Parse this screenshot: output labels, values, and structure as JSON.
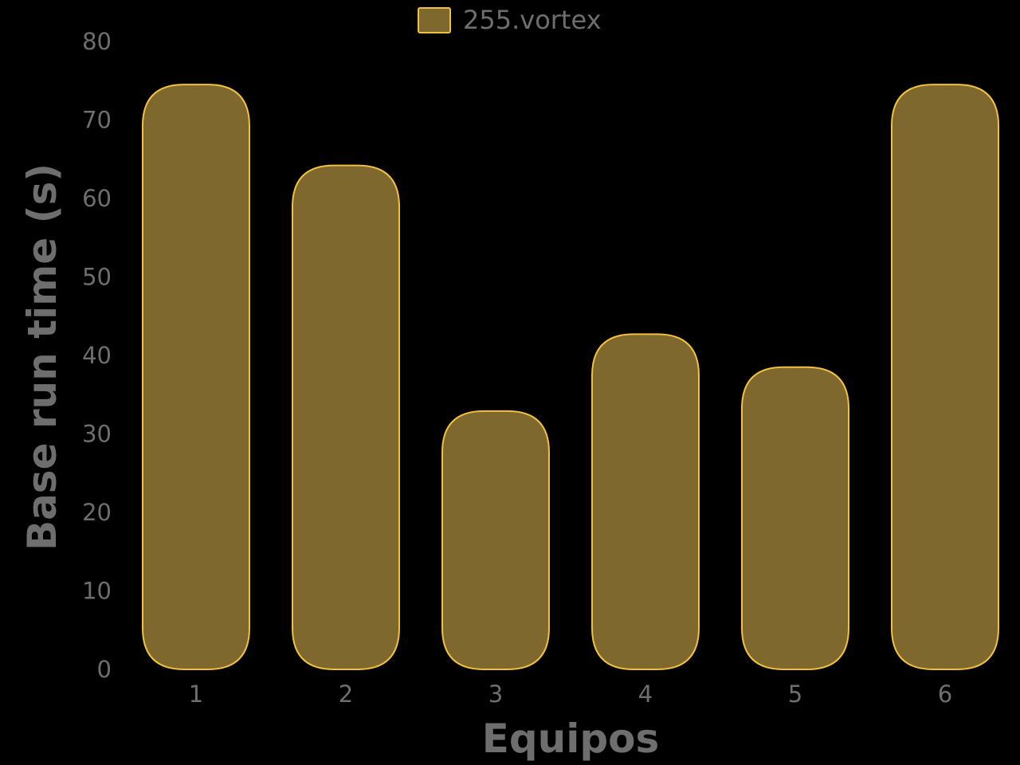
{
  "chart_data": {
    "type": "bar",
    "categories": [
      "1",
      "2",
      "3",
      "4",
      "5",
      "6"
    ],
    "series": [
      {
        "name": "255.vortex",
        "values": [
          74.5,
          64.2,
          32.9,
          42.7,
          38.5,
          74.5
        ]
      }
    ],
    "xlabel": "Equipos",
    "ylabel": "Base run time (s)",
    "ylim": [
      0,
      80
    ],
    "yticks": [
      0,
      10,
      20,
      30,
      40,
      50,
      60,
      70,
      80
    ],
    "grid": false,
    "legend_position": "top-center",
    "bar_style": "rounded",
    "colors": {
      "background": "#000000",
      "bar_fill": "#7f682d",
      "bar_edge": "#f0c040",
      "text": "#6e6e6e"
    }
  }
}
